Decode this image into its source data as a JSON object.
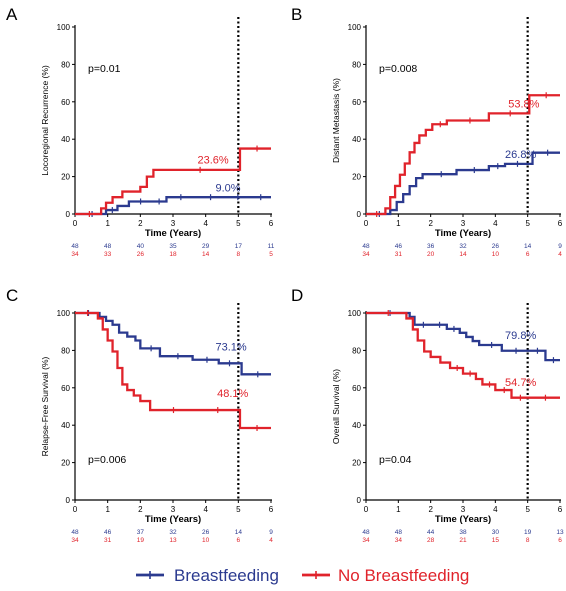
{
  "colors": {
    "breastfeeding": "#2b3a8f",
    "no_breastfeeding": "#e0232b"
  },
  "legend": {
    "entries": [
      {
        "key": "breastfeeding",
        "label": "Breastfeeding"
      },
      {
        "key": "no_breastfeeding",
        "label": "No Breastfeeding"
      }
    ]
  },
  "chart_data": [
    {
      "type": "line",
      "panel": "A",
      "title": "",
      "xlabel": "Time (Years)",
      "ylabel": "Locoregional Recurrence (%)",
      "xlim": [
        0,
        6
      ],
      "ylim": [
        0,
        100
      ],
      "xticks": [
        0,
        1,
        2,
        3,
        4,
        5,
        6
      ],
      "yticks": [
        0,
        20,
        40,
        60,
        80,
        100
      ],
      "pvalue": "p=0.01",
      "pvalue_position": "top-left",
      "reference_line_x": 5,
      "series": [
        {
          "name": "Breastfeeding",
          "key": "breastfeeding",
          "x": [
            0,
            0.95,
            1.3,
            1.65,
            2.3,
            2.8,
            3.6,
            4.6,
            5.3,
            6
          ],
          "y": [
            0,
            2.1,
            4.3,
            6.7,
            6.7,
            9.0,
            9.0,
            9.0,
            9.0,
            9.0
          ],
          "annotation": "9.0%",
          "annotation_x": 4.3,
          "annotation_y": 12
        },
        {
          "name": "No Breastfeeding",
          "key": "no_breastfeeding",
          "x": [
            0,
            0.8,
            0.95,
            1.15,
            1.45,
            1.75,
            2.0,
            2.2,
            2.4,
            5.0,
            5.05,
            6
          ],
          "y": [
            0,
            3.0,
            6.0,
            9.0,
            12.0,
            12.0,
            14.5,
            20.0,
            23.6,
            23.6,
            35.0,
            35.0
          ],
          "annotation": "23.6%",
          "annotation_x": 3.75,
          "annotation_y": 27
        }
      ],
      "risk_table": {
        "times": [
          0,
          1,
          2,
          3,
          4,
          5,
          6
        ],
        "breastfeeding": [
          "48",
          "48",
          "40",
          "35",
          "29",
          "17",
          "11"
        ],
        "no_breastfeeding": [
          "34",
          "33",
          "26",
          "18",
          "14",
          "8",
          "5"
        ]
      }
    },
    {
      "type": "line",
      "panel": "B",
      "title": "",
      "xlabel": "Time (Years)",
      "ylabel": "Distant Metastasis (%)",
      "xlim": [
        0,
        6
      ],
      "ylim": [
        0,
        100
      ],
      "xticks": [
        0,
        1,
        2,
        3,
        4,
        5,
        6
      ],
      "yticks": [
        0,
        20,
        40,
        60,
        80,
        100
      ],
      "pvalue": "p=0.008",
      "pvalue_position": "top-left",
      "reference_line_x": 5,
      "series": [
        {
          "name": "Breastfeeding",
          "key": "breastfeeding",
          "x": [
            0,
            0.75,
            0.95,
            1.15,
            1.35,
            1.55,
            1.75,
            2.8,
            3.8,
            4.3,
            5.0,
            5.15,
            6
          ],
          "y": [
            0,
            2.1,
            6.4,
            10.6,
            14.9,
            19.2,
            21.3,
            23.5,
            25.6,
            26.8,
            26.8,
            32.8,
            32.8
          ],
          "annotation": "26.8%",
          "annotation_x": 4.3,
          "annotation_y": 30
        },
        {
          "name": "No Breastfeeding",
          "key": "no_breastfeeding",
          "x": [
            0,
            0.6,
            0.75,
            0.9,
            1.05,
            1.2,
            1.35,
            1.5,
            1.65,
            1.85,
            2.05,
            2.5,
            3.8,
            5.0,
            5.05,
            6
          ],
          "y": [
            0,
            3.0,
            9.0,
            15.0,
            21.0,
            27.0,
            33.0,
            38.0,
            42.0,
            45.0,
            48.0,
            50.0,
            53.8,
            53.8,
            63.5,
            63.5
          ],
          "annotation": "53.8%",
          "annotation_x": 4.4,
          "annotation_y": 57
        }
      ],
      "risk_table": {
        "times": [
          0,
          1,
          2,
          3,
          4,
          5,
          6
        ],
        "breastfeeding": [
          "48",
          "46",
          "36",
          "32",
          "26",
          "14",
          "9"
        ],
        "no_breastfeeding": [
          "34",
          "31",
          "20",
          "14",
          "10",
          "6",
          "4"
        ]
      }
    },
    {
      "type": "line",
      "panel": "C",
      "title": "",
      "xlabel": "Time (Years)",
      "ylabel": "Relapse-Free Survival (%)",
      "xlim": [
        0,
        6
      ],
      "ylim": [
        0,
        100
      ],
      "xticks": [
        0,
        1,
        2,
        3,
        4,
        5,
        6
      ],
      "yticks": [
        0,
        20,
        40,
        60,
        80,
        100
      ],
      "pvalue": "p=0.006",
      "pvalue_position": "bottom-left",
      "reference_line_x": 5,
      "series": [
        {
          "name": "Breastfeeding",
          "key": "breastfeeding",
          "x": [
            0,
            0.75,
            0.95,
            1.15,
            1.35,
            1.6,
            1.85,
            2.0,
            2.6,
            3.6,
            4.4,
            5.0,
            5.1,
            6
          ],
          "y": [
            100,
            97.9,
            95.8,
            93.7,
            89.5,
            87.4,
            85.3,
            81.1,
            76.9,
            75.0,
            73.1,
            73.1,
            67.2,
            67.2
          ],
          "annotation": "73.1%",
          "annotation_x": 4.3,
          "annotation_y": 80
        },
        {
          "name": "No Breastfeeding",
          "key": "no_breastfeeding",
          "x": [
            0,
            0.7,
            0.85,
            1.0,
            1.15,
            1.3,
            1.45,
            1.6,
            1.8,
            2.0,
            2.3,
            3.6,
            5.0,
            5.05,
            6
          ],
          "y": [
            100,
            97.1,
            91.2,
            85.3,
            79.4,
            70.6,
            61.8,
            58.8,
            55.9,
            52.9,
            48.1,
            48.1,
            48.1,
            38.5,
            38.5
          ],
          "annotation": "48.1%",
          "annotation_x": 4.35,
          "annotation_y": 55
        }
      ],
      "risk_table": {
        "times": [
          0,
          1,
          2,
          3,
          4,
          5,
          6
        ],
        "breastfeeding": [
          "48",
          "46",
          "37",
          "32",
          "26",
          "14",
          "9"
        ],
        "no_breastfeeding": [
          "34",
          "31",
          "19",
          "13",
          "10",
          "6",
          "4"
        ]
      }
    },
    {
      "type": "line",
      "panel": "D",
      "title": "",
      "xlabel": "Time (Years)",
      "ylabel": "Overall Survival (%)",
      "xlim": [
        0,
        6
      ],
      "ylim": [
        0,
        100
      ],
      "xticks": [
        0,
        1,
        2,
        3,
        4,
        5,
        6
      ],
      "yticks": [
        0,
        20,
        40,
        60,
        80,
        100
      ],
      "pvalue": "p=0.04",
      "pvalue_position": "bottom-left",
      "reference_line_x": 5,
      "series": [
        {
          "name": "Breastfeeding",
          "key": "breastfeeding",
          "x": [
            0,
            1.35,
            1.5,
            2.0,
            2.5,
            2.9,
            3.1,
            3.3,
            3.5,
            4.2,
            5.0,
            5.55,
            6
          ],
          "y": [
            100,
            97.9,
            93.7,
            93.7,
            91.5,
            89.4,
            87.2,
            85.0,
            82.9,
            79.8,
            79.8,
            74.8,
            74.8
          ],
          "annotation": "79.8%",
          "annotation_x": 4.3,
          "annotation_y": 86
        },
        {
          "name": "No Breastfeeding",
          "key": "no_breastfeeding",
          "x": [
            0,
            1.25,
            1.45,
            1.6,
            1.8,
            2.0,
            2.3,
            2.6,
            3.0,
            3.4,
            3.6,
            4.0,
            4.5,
            5.0,
            6
          ],
          "y": [
            100,
            97.1,
            91.2,
            85.3,
            79.4,
            76.5,
            73.5,
            70.6,
            67.6,
            64.7,
            61.8,
            58.8,
            54.7,
            54.7,
            54.7
          ],
          "annotation": "54.7%",
          "annotation_x": 4.3,
          "annotation_y": 61
        }
      ],
      "risk_table": {
        "times": [
          0,
          1,
          2,
          3,
          4,
          5,
          6
        ],
        "breastfeeding": [
          "48",
          "48",
          "44",
          "38",
          "30",
          "19",
          "13"
        ],
        "no_breastfeeding": [
          "34",
          "34",
          "28",
          "21",
          "15",
          "8",
          "6"
        ]
      }
    }
  ]
}
